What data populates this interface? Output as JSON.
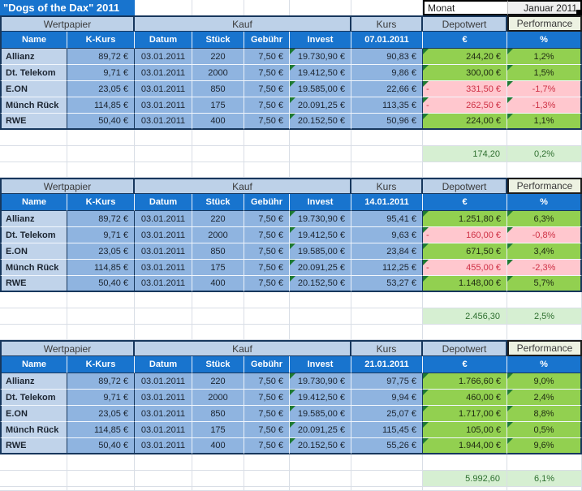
{
  "title": "\"Dogs of the Dax\"  2011",
  "monat": {
    "label": "Monat",
    "value": "Januar 2011"
  },
  "groups": {
    "wertpapier": "Wertpapier",
    "kauf": "Kauf",
    "kurs": "Kurs",
    "depotwert": "Depotwert",
    "performance": "Performance"
  },
  "headers": {
    "name": "Name",
    "kkurs": "K-Kurs",
    "datum": "Datum",
    "stueck": "Stück",
    "gebuehr": "Gebühr",
    "invest": "Invest",
    "euro": "€",
    "percent": "%"
  },
  "colors": {
    "header_blue": "#1874CE",
    "band_blue": "#BDD1E8",
    "cell_blue": "#8FB4E0",
    "name_blue": "#C0D3EA",
    "positive_green": "#92D050",
    "negative_pink": "#FFC7CE",
    "negative_text": "#CE3145",
    "totals_green": "#D6EFD2",
    "border_navy": "#17375D",
    "triangle_green": "#1E7A33"
  },
  "tables": [
    {
      "kurs_date": "07.01.2011",
      "rows": [
        {
          "name": "Allianz",
          "kkurs": "89,72 €",
          "datum": "03.01.2011",
          "stueck": "220",
          "gebuehr": "7,50 €",
          "invest": "19.730,90 €",
          "kurs": "90,83 €",
          "depot": "244,20 €",
          "depot_neg": false,
          "perf": "1,2%",
          "perf_neg": false
        },
        {
          "name": "Dt. Telekom",
          "kkurs": "9,71 €",
          "datum": "03.01.2011",
          "stueck": "2000",
          "gebuehr": "7,50 €",
          "invest": "19.412,50 €",
          "kurs": "9,86 €",
          "depot": "300,00 €",
          "depot_neg": false,
          "perf": "1,5%",
          "perf_neg": false
        },
        {
          "name": "E.ON",
          "kkurs": "23,05 €",
          "datum": "03.01.2011",
          "stueck": "850",
          "gebuehr": "7,50 €",
          "invest": "19.585,00 €",
          "kurs": "22,66 €",
          "depot": "331,50 €",
          "depot_neg": true,
          "perf": "-1,7%",
          "perf_neg": true
        },
        {
          "name": "Münch Rück",
          "kkurs": "114,85 €",
          "datum": "03.01.2011",
          "stueck": "175",
          "gebuehr": "7,50 €",
          "invest": "20.091,25 €",
          "kurs": "113,35 €",
          "depot": "262,50 €",
          "depot_neg": true,
          "perf": "-1,3%",
          "perf_neg": true
        },
        {
          "name": "RWE",
          "kkurs": "50,40 €",
          "datum": "03.01.2011",
          "stueck": "400",
          "gebuehr": "7,50 €",
          "invest": "20.152,50 €",
          "kurs": "50,96 €",
          "depot": "224,00 €",
          "depot_neg": false,
          "perf": "1,1%",
          "perf_neg": false
        }
      ],
      "total_depot": "174,20",
      "total_perf": "0,2%"
    },
    {
      "kurs_date": "14.01.2011",
      "rows": [
        {
          "name": "Allianz",
          "kkurs": "89,72 €",
          "datum": "03.01.2011",
          "stueck": "220",
          "gebuehr": "7,50 €",
          "invest": "19.730,90 €",
          "kurs": "95,41 €",
          "depot": "1.251,80 €",
          "depot_neg": false,
          "perf": "6,3%",
          "perf_neg": false
        },
        {
          "name": "Dt. Telekom",
          "kkurs": "9,71 €",
          "datum": "03.01.2011",
          "stueck": "2000",
          "gebuehr": "7,50 €",
          "invest": "19.412,50 €",
          "kurs": "9,63 €",
          "depot": "160,00 €",
          "depot_neg": true,
          "perf": "-0,8%",
          "perf_neg": true
        },
        {
          "name": "E.ON",
          "kkurs": "23,05 €",
          "datum": "03.01.2011",
          "stueck": "850",
          "gebuehr": "7,50 €",
          "invest": "19.585,00 €",
          "kurs": "23,84 €",
          "depot": "671,50 €",
          "depot_neg": false,
          "perf": "3,4%",
          "perf_neg": false
        },
        {
          "name": "Münch Rück",
          "kkurs": "114,85 €",
          "datum": "03.01.2011",
          "stueck": "175",
          "gebuehr": "7,50 €",
          "invest": "20.091,25 €",
          "kurs": "112,25 €",
          "depot": "455,00 €",
          "depot_neg": true,
          "perf": "-2,3%",
          "perf_neg": true
        },
        {
          "name": "RWE",
          "kkurs": "50,40 €",
          "datum": "03.01.2011",
          "stueck": "400",
          "gebuehr": "7,50 €",
          "invest": "20.152,50 €",
          "kurs": "53,27 €",
          "depot": "1.148,00 €",
          "depot_neg": false,
          "perf": "5,7%",
          "perf_neg": false
        }
      ],
      "total_depot": "2.456,30",
      "total_perf": "2,5%"
    },
    {
      "kurs_date": "21.01.2011",
      "rows": [
        {
          "name": "Allianz",
          "kkurs": "89,72 €",
          "datum": "03.01.2011",
          "stueck": "220",
          "gebuehr": "7,50 €",
          "invest": "19.730,90 €",
          "kurs": "97,75 €",
          "depot": "1.766,60 €",
          "depot_neg": false,
          "perf": "9,0%",
          "perf_neg": false
        },
        {
          "name": "Dt. Telekom",
          "kkurs": "9,71 €",
          "datum": "03.01.2011",
          "stueck": "2000",
          "gebuehr": "7,50 €",
          "invest": "19.412,50 €",
          "kurs": "9,94 €",
          "depot": "460,00 €",
          "depot_neg": false,
          "perf": "2,4%",
          "perf_neg": false
        },
        {
          "name": "E.ON",
          "kkurs": "23,05 €",
          "datum": "03.01.2011",
          "stueck": "850",
          "gebuehr": "7,50 €",
          "invest": "19.585,00 €",
          "kurs": "25,07 €",
          "depot": "1.717,00 €",
          "depot_neg": false,
          "perf": "8,8%",
          "perf_neg": false
        },
        {
          "name": "Münch Rück",
          "kkurs": "114,85 €",
          "datum": "03.01.2011",
          "stueck": "175",
          "gebuehr": "7,50 €",
          "invest": "20.091,25 €",
          "kurs": "115,45 €",
          "depot": "105,00 €",
          "depot_neg": false,
          "perf": "0,5%",
          "perf_neg": false
        },
        {
          "name": "RWE",
          "kkurs": "50,40 €",
          "datum": "03.01.2011",
          "stueck": "400",
          "gebuehr": "7,50 €",
          "invest": "20.152,50 €",
          "kurs": "55,26 €",
          "depot": "1.944,00 €",
          "depot_neg": false,
          "perf": "9,6%",
          "perf_neg": false
        }
      ],
      "total_depot": "5.992,60",
      "total_perf": "6,1%"
    }
  ]
}
